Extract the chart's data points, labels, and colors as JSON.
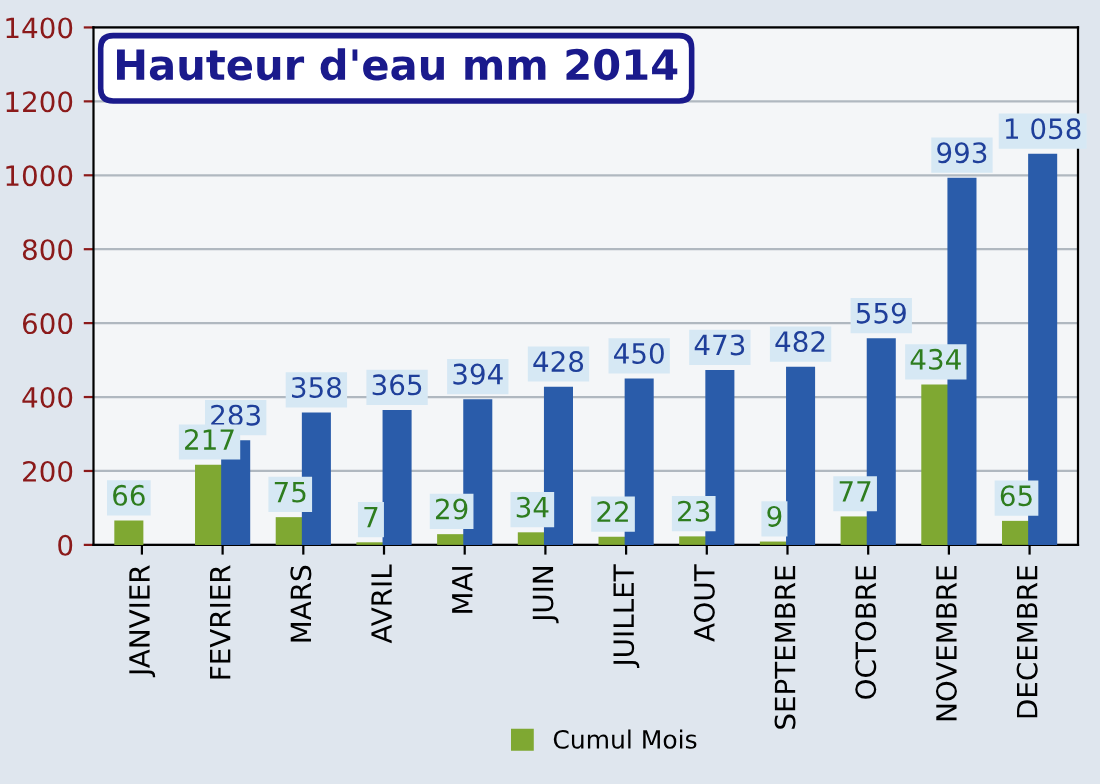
{
  "chart_data": {
    "type": "bar",
    "title": "Hauteur d'eau mm 2014",
    "categories": [
      "JANVIER",
      "FEVRIER",
      "MARS",
      "AVRIL",
      "MAI",
      "JUIN",
      "JUILLET",
      "AOUT",
      "SEPTEMBRE",
      "OCTOBRE",
      "NOVEMBRE",
      "DECEMBRE"
    ],
    "series": [
      {
        "name": "Cumul Mois",
        "color": "#7fa832",
        "values": [
          66,
          217,
          75,
          7,
          29,
          34,
          22,
          23,
          9,
          77,
          434,
          65
        ],
        "value_labels": [
          "66",
          "217",
          "75",
          "7",
          "29",
          "34",
          "22",
          "23",
          "9",
          "77",
          "434",
          "65"
        ]
      },
      {
        "color": "#2a5caa",
        "values": [
          null,
          283,
          358,
          365,
          394,
          428,
          450,
          473,
          482,
          559,
          993,
          1058
        ],
        "value_labels": [
          null,
          "283",
          "358",
          "365",
          "394",
          "428",
          "450",
          "473",
          "482",
          "559",
          "993",
          "1 058"
        ]
      }
    ],
    "ylim": [
      0,
      1400
    ],
    "yticks": [
      0,
      200,
      400,
      600,
      800,
      1000,
      1200,
      1400
    ],
    "grid": "y",
    "legend": "bottom"
  }
}
